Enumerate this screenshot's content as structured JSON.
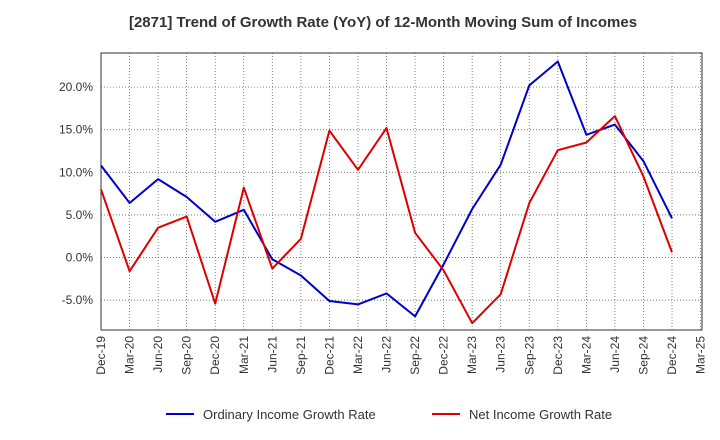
{
  "chart_data": {
    "type": "line",
    "title": "[2871]  Trend of Growth Rate (YoY) of 12-Month Moving Sum of Incomes",
    "xlabel": "",
    "ylabel": "",
    "categories": [
      "Dec-19",
      "Mar-20",
      "Jun-20",
      "Sep-20",
      "Dec-20",
      "Mar-21",
      "Jun-21",
      "Sep-21",
      "Dec-21",
      "Mar-22",
      "Jun-22",
      "Sep-22",
      "Dec-22",
      "Mar-23",
      "Jun-23",
      "Sep-23",
      "Dec-23",
      "Mar-24",
      "Jun-24",
      "Sep-24",
      "Dec-24",
      "Mar-25"
    ],
    "ylim": [
      -8.5,
      24
    ],
    "yticks": [
      -5,
      0,
      5,
      10,
      15,
      20
    ],
    "ytick_labels": [
      "-5.0%",
      "0.0%",
      "5.0%",
      "10.0%",
      "15.0%",
      "20.0%"
    ],
    "grid": true,
    "legend_position": "bottom",
    "series": [
      {
        "name": "Ordinary Income Growth Rate",
        "color": "#0000cc",
        "values": [
          10.8,
          6.4,
          9.2,
          7.1,
          4.2,
          5.6,
          -0.2,
          -2.1,
          -5.1,
          -5.5,
          -4.2,
          -6.9,
          -0.8,
          5.7,
          10.9,
          20.2,
          23.0,
          14.4,
          15.6,
          11.3,
          4.6,
          null
        ]
      },
      {
        "name": "Net Income Growth Rate",
        "color": "#dd0000",
        "values": [
          8.0,
          -1.6,
          3.5,
          4.8,
          -5.4,
          8.2,
          -1.3,
          2.2,
          14.9,
          10.3,
          15.2,
          2.9,
          -1.5,
          -7.7,
          -4.3,
          6.4,
          12.6,
          13.5,
          16.6,
          9.5,
          0.6,
          null
        ]
      }
    ]
  }
}
